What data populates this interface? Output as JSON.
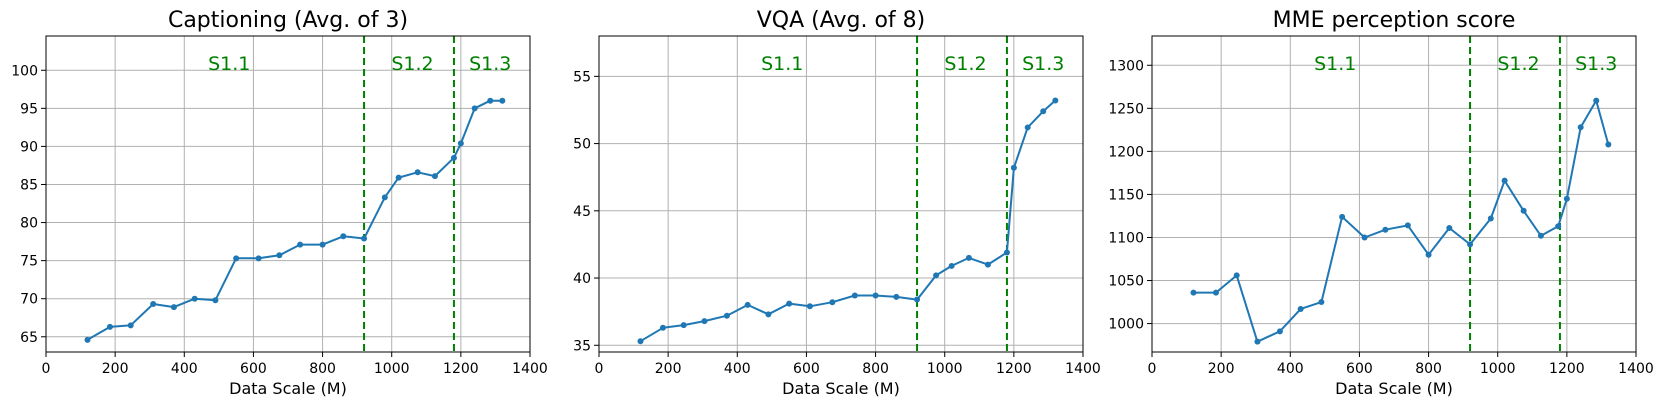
{
  "chart_data": [
    {
      "type": "line",
      "title": "Captioning (Avg. of 3)",
      "xlabel": "Data Scale (M)",
      "ylabel": "",
      "xlim": [
        0,
        1400
      ],
      "ylim": [
        63,
        104.5
      ],
      "xticks": [
        0,
        200,
        400,
        600,
        800,
        1000,
        1200,
        1400
      ],
      "xtick_labels": [
        "0",
        "200",
        "400",
        "600",
        "800",
        "1000",
        "1200",
        "1400"
      ],
      "yticks": [
        65,
        70,
        75,
        80,
        85,
        90,
        95,
        100
      ],
      "ytick_labels": [
        "65",
        "70",
        "75",
        "80",
        "85",
        "90",
        "95",
        "100"
      ],
      "grid": true,
      "line_color": "#1f77b4",
      "stage_line_color": "#008000",
      "stage_lines": [
        920,
        1180
      ],
      "stage_labels": [
        {
          "text": "S1.1",
          "x": 530
        },
        {
          "text": "S1.2",
          "x": 1060
        },
        {
          "text": "S1.3",
          "x": 1285
        }
      ],
      "x": [
        120,
        185,
        245,
        310,
        370,
        430,
        490,
        550,
        615,
        675,
        735,
        800,
        860,
        920,
        980,
        1020,
        1075,
        1125,
        1180,
        1200,
        1240,
        1285,
        1320
      ],
      "y": [
        64.6,
        66.3,
        66.5,
        69.3,
        68.9,
        70.0,
        69.8,
        75.3,
        75.3,
        75.7,
        77.1,
        77.1,
        78.2,
        77.9,
        83.3,
        85.9,
        86.6,
        86.1,
        88.5,
        90.4,
        95.0,
        96.0,
        96.0
      ]
    },
    {
      "type": "line",
      "title": "VQA (Avg. of 8)",
      "xlabel": "Data Scale (M)",
      "ylabel": "",
      "xlim": [
        0,
        1400
      ],
      "ylim": [
        34.5,
        58
      ],
      "xticks": [
        0,
        200,
        400,
        600,
        800,
        1000,
        1200,
        1400
      ],
      "xtick_labels": [
        "0",
        "200",
        "400",
        "600",
        "800",
        "1000",
        "1200",
        "1400"
      ],
      "yticks": [
        35,
        40,
        45,
        50,
        55
      ],
      "ytick_labels": [
        "35",
        "40",
        "45",
        "50",
        "55"
      ],
      "grid": true,
      "line_color": "#1f77b4",
      "stage_line_color": "#008000",
      "stage_lines": [
        920,
        1180
      ],
      "stage_labels": [
        {
          "text": "S1.1",
          "x": 530
        },
        {
          "text": "S1.2",
          "x": 1060
        },
        {
          "text": "S1.3",
          "x": 1285
        }
      ],
      "x": [
        120,
        185,
        245,
        305,
        370,
        430,
        490,
        550,
        610,
        675,
        740,
        800,
        860,
        920,
        975,
        1020,
        1070,
        1125,
        1180,
        1200,
        1240,
        1285,
        1320
      ],
      "y": [
        35.3,
        36.3,
        36.5,
        36.8,
        37.2,
        38.0,
        37.3,
        38.1,
        37.9,
        38.2,
        38.7,
        38.7,
        38.6,
        38.4,
        40.2,
        40.9,
        41.5,
        41.0,
        41.9,
        48.2,
        51.2,
        52.4,
        53.2
      ]
    },
    {
      "type": "line",
      "title": "MME perception score",
      "xlabel": "Data Scale (M)",
      "ylabel": "",
      "xlim": [
        0,
        1400
      ],
      "ylim": [
        967,
        1334
      ],
      "xticks": [
        0,
        200,
        400,
        600,
        800,
        1000,
        1200,
        1400
      ],
      "xtick_labels": [
        "0",
        "200",
        "400",
        "600",
        "800",
        "1000",
        "1200",
        "1400"
      ],
      "yticks": [
        1000,
        1050,
        1100,
        1150,
        1200,
        1250,
        1300
      ],
      "ytick_labels": [
        "1000",
        "1050",
        "1100",
        "1150",
        "1200",
        "1250",
        "1300"
      ],
      "grid": true,
      "line_color": "#1f77b4",
      "stage_line_color": "#008000",
      "stage_lines": [
        920,
        1180
      ],
      "stage_labels": [
        {
          "text": "S1.1",
          "x": 530
        },
        {
          "text": "S1.2",
          "x": 1060
        },
        {
          "text": "S1.3",
          "x": 1285
        }
      ],
      "x": [
        120,
        185,
        245,
        305,
        370,
        430,
        490,
        550,
        615,
        675,
        740,
        800,
        860,
        920,
        980,
        1020,
        1075,
        1125,
        1175,
        1200,
        1240,
        1285,
        1320
      ],
      "y": [
        1036,
        1036,
        1056,
        979,
        991,
        1017,
        1025,
        1124,
        1100,
        1109,
        1114,
        1080,
        1111,
        1092,
        1122,
        1166,
        1131,
        1102,
        1113,
        1145,
        1228,
        1259,
        1208
      ]
    }
  ]
}
